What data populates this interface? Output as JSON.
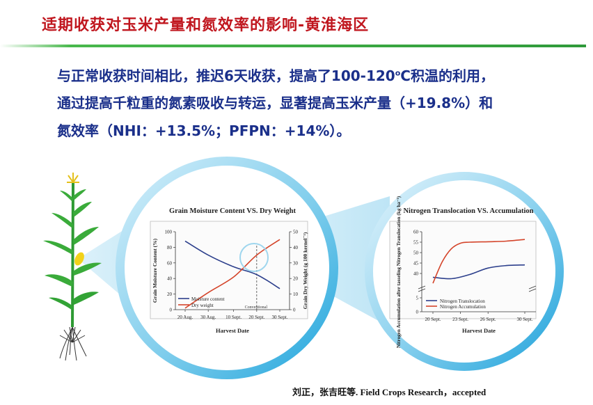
{
  "slide": {
    "title": "适期收获对玉米产量和氮效率的影响-黄淮海区",
    "line1_pre": "与正常收获时间相比，推迟6天收获，提高了100-120",
    "line1_sup": "o",
    "line1_post": "C积温的利用，",
    "line2": "通过提高千粒重的氮素吸收与转运，显著提高玉米产量（+19.8%）和",
    "line3": "氮效率（NHI：+13.5%；PFPN：+14%）。",
    "citation": "刘正，张吉旺等. Field Crops Research，accepted"
  },
  "chart_data": [
    {
      "type": "line",
      "title": "Grain Moisture Content VS. Dry Weight",
      "xlabel": "Harvest Date",
      "ylabel": "Grain Moisture Content (%)",
      "ylabel_right": "Grain Dry Weight (g 100 kernel⁻¹)",
      "categories": [
        "20 Aug.",
        "30 Aug.",
        "10 Sept.",
        "20 Sept.",
        "30 Sept."
      ],
      "x": [
        0,
        10,
        21,
        31,
        41
      ],
      "ylim": [
        0,
        100
      ],
      "ylim_right": [
        0,
        50
      ],
      "yticks": [
        "100",
        "80",
        "60",
        "40",
        "20",
        "0"
      ],
      "yticks_right": [
        "50",
        "40",
        "30",
        "20",
        "10",
        "0"
      ],
      "annotation": "Conventional",
      "conventional_x": 31,
      "series": [
        {
          "name": "Moisture content",
          "axis": "left",
          "color": "#2c3f8c",
          "x": [
            0,
            10,
            21,
            31,
            41
          ],
          "values": [
            88,
            70,
            55,
            45,
            27
          ]
        },
        {
          "name": "Dry weight",
          "axis": "right",
          "color": "#d4442a",
          "x": [
            0,
            10,
            21,
            31,
            41
          ],
          "values": [
            1,
            11,
            21,
            35,
            45
          ]
        }
      ]
    },
    {
      "type": "line",
      "title": "Nitrogen Translocation VS. Accumulation",
      "xlabel": "Harvest Date",
      "ylabel": "Nitrogen Accumulation after tasseling Nitrogen Translocation (kg ha⁻¹)",
      "categories": [
        "20 Sept.",
        "23 Sept.",
        "26 Sept.",
        "30 Sept."
      ],
      "x": [
        0,
        3,
        6,
        10
      ],
      "ylim": [
        0,
        60
      ],
      "axis_break": [
        5,
        35
      ],
      "yticks": [
        "60",
        "55",
        "50",
        "45",
        "40",
        "5",
        "0"
      ],
      "series": [
        {
          "name": "Nitrogen Translocation",
          "color": "#2c3f8c",
          "x": [
            0,
            2,
            4,
            6,
            8,
            10
          ],
          "values": [
            38.2,
            37.5,
            39.5,
            42.6,
            43.8,
            44.1
          ]
        },
        {
          "name": "Nitrogen Accumulation",
          "color": "#d4442a",
          "x": [
            0,
            1,
            2,
            3,
            4,
            6,
            8,
            10
          ],
          "values": [
            35.3,
            45.5,
            51.8,
            54.5,
            55.0,
            55.2,
            55.5,
            56.3
          ]
        }
      ]
    }
  ]
}
